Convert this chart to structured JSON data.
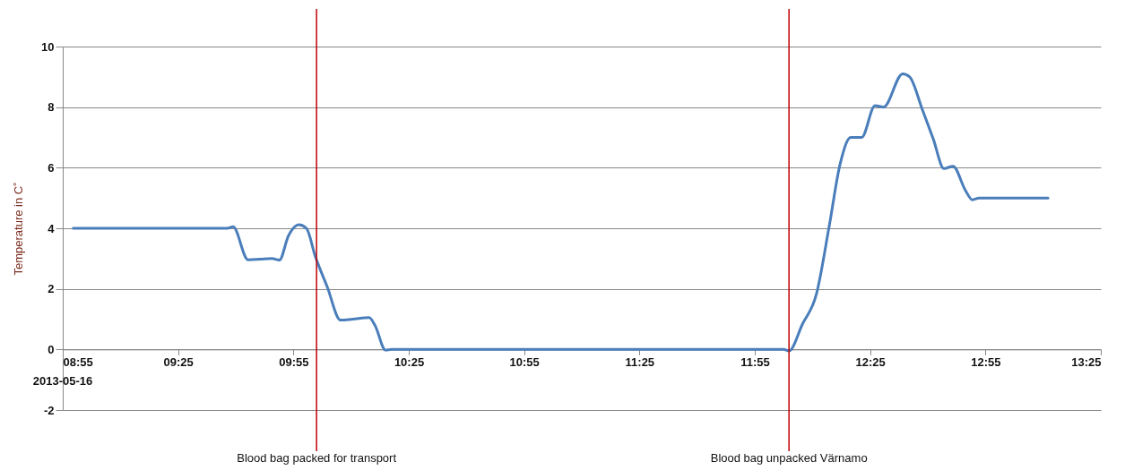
{
  "chart_data": {
    "type": "line",
    "ylabel": "Temperature in C˚",
    "x": [
      8.962,
      9.629,
      9.655,
      9.72,
      9.772,
      9.823,
      9.856,
      9.895,
      9.94,
      9.973,
      10.012,
      10.063,
      10.121,
      10.173,
      10.245,
      10.27,
      10.316,
      10.342,
      12.042,
      12.065,
      12.123,
      12.184,
      12.24,
      12.286,
      12.333,
      12.38,
      12.438,
      12.475,
      12.558,
      12.588,
      12.644,
      12.69,
      12.737,
      12.776,
      12.83,
      12.86,
      12.889,
      13.188
    ],
    "series": [
      {
        "color": "#4a7ebb",
        "values": [
          4.0,
          4.0,
          4.05,
          2.96,
          2.98,
          3.0,
          2.95,
          3.75,
          4.12,
          4.0,
          3.06,
          2.07,
          0.97,
          1.0,
          1.05,
          0.8,
          -0.02,
          0,
          0,
          -0.05,
          0.83,
          1.83,
          4.1,
          6.1,
          7.0,
          7.0,
          8.05,
          8.0,
          9.1,
          9.0,
          7.9,
          6.96,
          5.97,
          6.05,
          5.25,
          4.94,
          5.0,
          5.0
        ]
      }
    ],
    "xlim": [
      8.9167,
      13.4167
    ],
    "xticks": [
      {
        "value": 8.9167,
        "label": "08:55"
      },
      {
        "value": 9.4167,
        "label": "09:25"
      },
      {
        "value": 9.9167,
        "label": "09:55"
      },
      {
        "value": 10.4167,
        "label": "10:25"
      },
      {
        "value": 10.9167,
        "label": "10:55"
      },
      {
        "value": 11.4167,
        "label": "11:25"
      },
      {
        "value": 11.9167,
        "label": "11:55"
      },
      {
        "value": 12.4167,
        "label": "12:25"
      },
      {
        "value": 12.9167,
        "label": "12:55"
      },
      {
        "value": 13.4167,
        "label": "13:25"
      }
    ],
    "ylim": [
      -2,
      10
    ],
    "yticks": [
      -2,
      0,
      2,
      4,
      6,
      8,
      10
    ],
    "grid": "y",
    "marker": "none",
    "line_style": "solid",
    "ref_lines": [
      {
        "axis": "x",
        "value": 10.017,
        "label": "Blood bag packed for transport",
        "color": "#c00000"
      },
      {
        "axis": "x",
        "value": 12.065,
        "label": "Blood bag unpacked Värnamo",
        "color": "#c00000"
      }
    ],
    "annotations": [
      "2013-05-16"
    ]
  }
}
